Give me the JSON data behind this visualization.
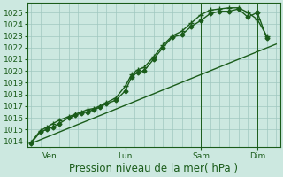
{
  "bg_color": "#cce8e0",
  "grid_color": "#a0c8c0",
  "line_color": "#1a5c1a",
  "spine_color": "#1a5c1a",
  "title": "Pression niveau de la mer( hPa )",
  "ylim": [
    1013.5,
    1025.8
  ],
  "yticks": [
    1014,
    1015,
    1016,
    1017,
    1018,
    1019,
    1020,
    1021,
    1022,
    1023,
    1024,
    1025
  ],
  "day_labels": [
    "Ven",
    "Lun",
    "Sam",
    "Dim"
  ],
  "day_positions": [
    0.5,
    2.5,
    4.5,
    6.0
  ],
  "xlim": [
    -0.1,
    6.6
  ],
  "xlabel_fontsize": 8.5,
  "tick_fontsize": 6.5,
  "figsize": [
    3.2,
    2.0
  ],
  "dpi": 100,
  "series": [
    {
      "x": [
        0.0,
        0.25,
        0.42,
        0.58,
        0.75,
        1.0,
        1.17,
        1.33,
        1.5,
        1.67,
        1.83,
        2.0,
        2.25,
        2.5,
        2.67,
        2.83,
        3.0,
        3.25,
        3.5,
        3.75,
        4.0,
        4.25,
        4.5,
        4.75,
        5.0,
        5.25,
        5.5,
        5.75,
        6.0,
        6.25
      ],
      "y": [
        1013.8,
        1014.8,
        1015.0,
        1015.2,
        1015.5,
        1016.0,
        1016.2,
        1016.4,
        1016.5,
        1016.7,
        1016.9,
        1017.2,
        1017.5,
        1018.3,
        1019.5,
        1019.9,
        1020.0,
        1021.0,
        1022.0,
        1022.9,
        1023.1,
        1023.8,
        1024.3,
        1024.9,
        1025.1,
        1025.1,
        1025.3,
        1024.6,
        1025.0,
        1022.8
      ],
      "marker": "D",
      "markersize": 2.5,
      "linewidth": 1.0
    },
    {
      "x": [
        0.0,
        0.25,
        0.42,
        0.58,
        0.75,
        1.0,
        1.17,
        1.33,
        1.5,
        1.67,
        1.83,
        2.0,
        2.25,
        2.5,
        2.67,
        2.83,
        3.0,
        3.25,
        3.5,
        3.75,
        4.0,
        4.25,
        4.5,
        4.75,
        5.0,
        5.25,
        5.5,
        5.75,
        6.0,
        6.25
      ],
      "y": [
        1013.9,
        1014.9,
        1015.2,
        1015.5,
        1015.8,
        1016.1,
        1016.3,
        1016.5,
        1016.7,
        1016.8,
        1017.0,
        1017.3,
        1017.7,
        1018.7,
        1019.7,
        1020.1,
        1020.3,
        1021.2,
        1022.2,
        1023.0,
        1023.4,
        1024.1,
        1024.8,
        1025.2,
        1025.3,
        1025.4,
        1025.4,
        1025.0,
        1024.4,
        1023.0
      ],
      "marker": "+",
      "markersize": 4.5,
      "linewidth": 1.0
    },
    {
      "x": [
        0.0,
        6.5
      ],
      "y": [
        1013.8,
        1022.3
      ],
      "marker": null,
      "markersize": 0,
      "linewidth": 1.0
    }
  ],
  "vlines": [
    0.5,
    2.5,
    4.5,
    6.0
  ]
}
